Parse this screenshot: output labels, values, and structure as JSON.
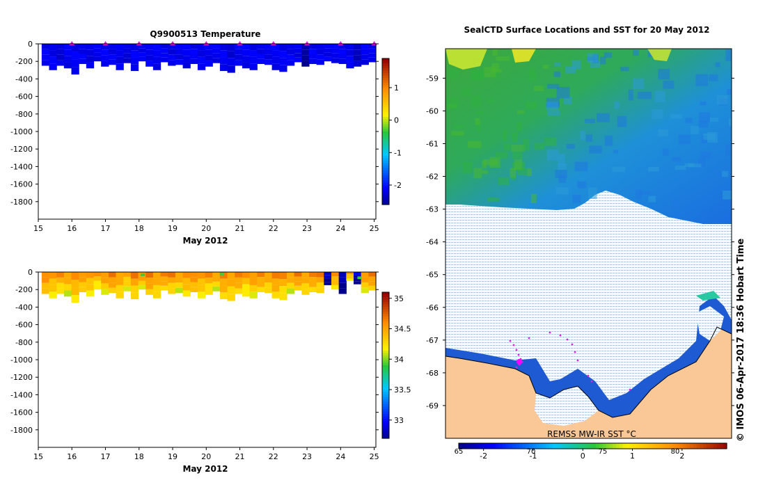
{
  "chart_data": [
    {
      "id": "temperature",
      "type": "heatmap",
      "title": "Q9900513  Temperature",
      "xlabel": "May 2012",
      "ylabel": "",
      "x_ticks": [
        15,
        16,
        17,
        18,
        19,
        20,
        21,
        22,
        23,
        24,
        25
      ],
      "y_ticks": [
        0,
        -200,
        -400,
        -600,
        -800,
        -1000,
        -1200,
        -1400,
        -1600,
        -1800
      ],
      "xlim": [
        15,
        25.05
      ],
      "ylim": [
        -2000,
        0
      ],
      "profile_depth_m": [
        -250,
        -300,
        -250,
        -280,
        -350,
        -230,
        -280,
        -200,
        -260,
        -240,
        -300,
        -220,
        -310,
        -200,
        -260,
        -300,
        -210,
        -250,
        -240,
        -280,
        -230,
        -300,
        -260,
        -220,
        -310,
        -330,
        -250,
        -280,
        -300,
        -230,
        -240,
        -300,
        -320,
        -250,
        -210,
        -260,
        -230,
        -240,
        -200,
        -220,
        -230,
        -280,
        -260,
        -240,
        -210
      ],
      "profile_value": [
        -2.2,
        -2.2,
        -2.3,
        -2.2,
        -2.2,
        -2.2,
        -2.25,
        -2.2,
        -2.2,
        -2.2,
        -2.2,
        -2.3,
        -2.2,
        -2.2,
        -2.2,
        -2.2,
        -2.2,
        -2.25,
        -2.2,
        -2.2,
        -2.2,
        -2.2,
        -2.2,
        -2.2,
        -2.2,
        -2.3,
        -2.2,
        -2.2,
        -2.2,
        -2.2,
        -2.2,
        -2.2,
        -2.2,
        -2.2,
        -2.2,
        -2.6,
        -2.2,
        -2.2,
        -2.2,
        -2.2,
        -2.2,
        -2.2,
        -2.4,
        -2.2,
        -2.2
      ],
      "surface_markers": [
        16,
        17,
        18,
        19,
        20,
        21,
        22,
        23,
        24,
        25
      ],
      "colorbar": {
        "ticks": [
          1,
          0,
          -1,
          -2
        ],
        "range": [
          -2.6,
          1.9
        ]
      }
    },
    {
      "id": "salinity",
      "type": "heatmap",
      "title": "",
      "xlabel": "May 2012",
      "ylabel": "",
      "x_ticks": [
        15,
        16,
        17,
        18,
        19,
        20,
        21,
        22,
        23,
        24,
        25
      ],
      "y_ticks": [
        0,
        -200,
        -400,
        -600,
        -800,
        -1000,
        -1200,
        -1400,
        -1600,
        -1800
      ],
      "xlim": [
        15,
        25.05
      ],
      "ylim": [
        -2000,
        0
      ],
      "profile_depth_m": [
        -250,
        -300,
        -250,
        -280,
        -350,
        -230,
        -280,
        -200,
        -260,
        -240,
        -300,
        -220,
        -310,
        -200,
        -260,
        -300,
        -210,
        -250,
        -240,
        -280,
        -230,
        -300,
        -260,
        -220,
        -310,
        -330,
        -250,
        -280,
        -300,
        -230,
        -240,
        -300,
        -320,
        -250,
        -210,
        -260,
        -230,
        -240,
        -150,
        -200,
        -250,
        -100,
        -140,
        -240,
        -210
      ],
      "profile_value": [
        34.6,
        34.5,
        34.5,
        34.45,
        34.5,
        34.55,
        34.5,
        34.45,
        34.5,
        34.6,
        34.5,
        34.45,
        34.55,
        34.5,
        34.6,
        34.5,
        34.6,
        34.55,
        34.45,
        34.5,
        34.6,
        34.5,
        34.5,
        34.45,
        34.55,
        34.5,
        34.6,
        34.45,
        34.5,
        34.55,
        34.5,
        34.6,
        34.5,
        34.45,
        34.6,
        34.5,
        34.6,
        34.55,
        32.8,
        34.5,
        32.8,
        34.5,
        32.8,
        34.5,
        34.6
      ],
      "colorbar": {
        "ticks": [
          35,
          34.5,
          34,
          33.5,
          33
        ],
        "range": [
          32.7,
          35.1
        ]
      }
    },
    {
      "id": "sst-map",
      "type": "heatmap",
      "title": "SealCTD Surface Locations and SST for 20 May 2012",
      "y_ticks": [
        -59,
        -60,
        -61,
        -62,
        -63,
        -64,
        -65,
        -66,
        -67,
        -68,
        -69
      ],
      "ylim": [
        -70,
        -58.1
      ],
      "lon_labels": [
        "65",
        "70",
        "75",
        "80"
      ],
      "annotation": "REMSS MW-IR SST °C",
      "colorbar": {
        "ticks": [
          -2,
          -1,
          0,
          1,
          2
        ],
        "range": [
          -2.5,
          2.9
        ]
      }
    }
  ],
  "credit": "© IMOS 06-Apr-2017 18:36 Hobart Time"
}
